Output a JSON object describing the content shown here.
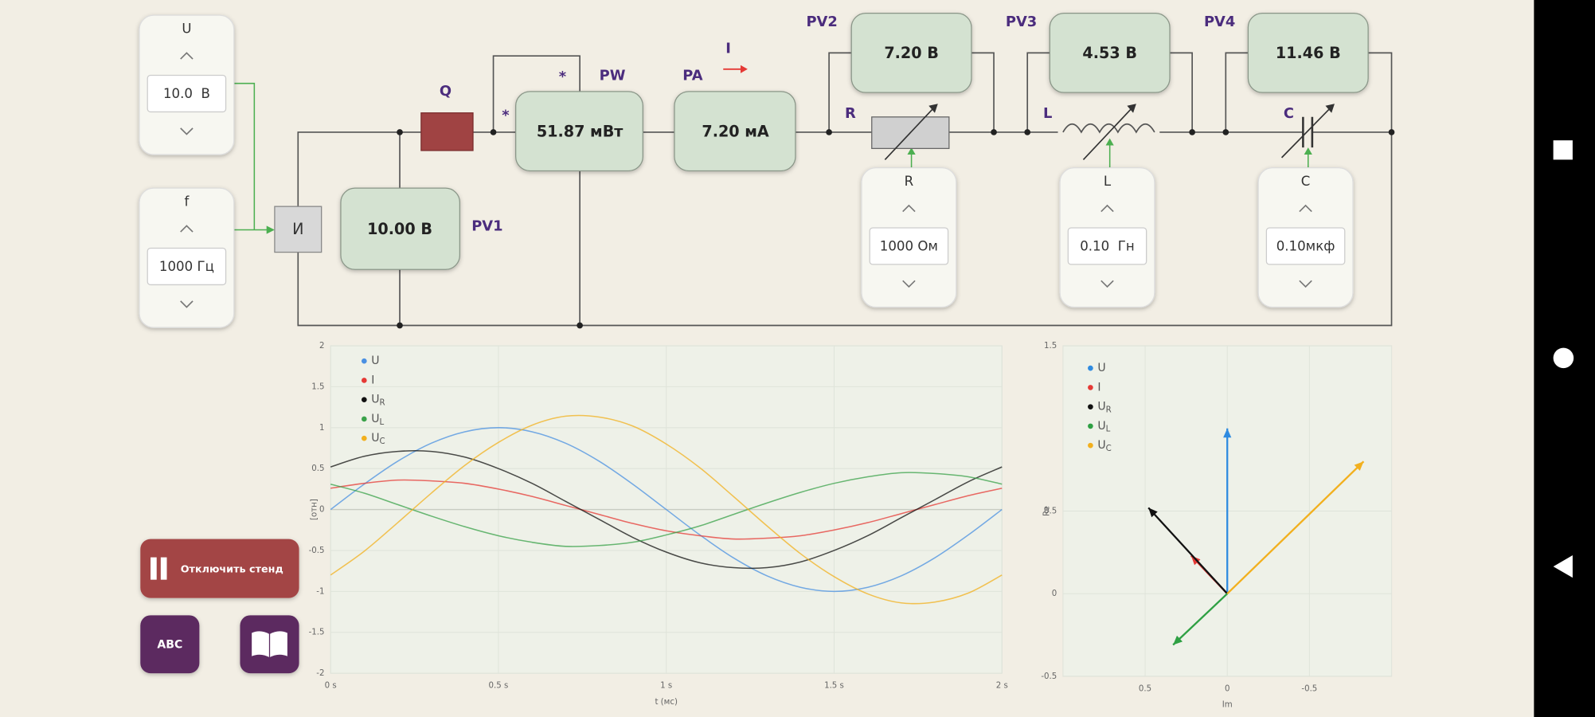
{
  "controls": {
    "U": {
      "label": "U",
      "value": "10.0  В"
    },
    "f": {
      "label": "f",
      "value": "1000 Гц"
    },
    "R": {
      "label": "R",
      "value": "1000 Ом"
    },
    "L": {
      "label": "L",
      "value": "0.10  Гн"
    },
    "C": {
      "label": "C",
      "value": "0.10мкф"
    }
  },
  "source": "И",
  "meters": {
    "PV1": {
      "label": "PV1",
      "reading": "10.00 В"
    },
    "PW": {
      "label": "PW",
      "reading": "51.87 мВт"
    },
    "PA": {
      "label": "PA",
      "reading": "7.20 мА"
    },
    "PV2": {
      "label": "PV2",
      "reading": "7.20 В"
    },
    "PV3": {
      "label": "PV3",
      "reading": "4.53 В"
    },
    "PV4": {
      "label": "PV4",
      "reading": "11.46 В"
    }
  },
  "circuit_labels": {
    "Q": "Q",
    "current": "I",
    "star": "*",
    "R": "R",
    "L": "L",
    "C": "C"
  },
  "buttons": {
    "stop": "Отключить стенд",
    "abc": "ABC"
  },
  "chart_data": [
    {
      "type": "line",
      "x_label": "t (мс)",
      "y_label": "[отн]",
      "x": [
        0,
        0.1,
        0.2,
        0.3,
        0.4,
        0.5,
        0.6,
        0.7,
        0.8,
        0.9,
        1,
        1.1,
        1.2,
        1.3,
        1.4,
        1.5,
        1.6,
        1.7,
        1.8,
        1.9,
        2
      ],
      "xlim": [
        0,
        2
      ],
      "xticks": [
        {
          "value": 0,
          "label": "0 s"
        },
        {
          "value": 0.5,
          "label": "0.5 s"
        },
        {
          "value": 1,
          "label": "1 s"
        },
        {
          "value": 1.5,
          "label": "1.5 s"
        },
        {
          "value": 2,
          "label": "2 s"
        }
      ],
      "ylim": [
        -2,
        2
      ],
      "yticks": [
        -2,
        -1.5,
        -1,
        -0.5,
        0,
        0.5,
        1,
        1.5,
        2
      ],
      "grid": true,
      "series": [
        {
          "name": "U",
          "color": "#4a90e2",
          "values": [
            0,
            0.31,
            0.59,
            0.81,
            0.95,
            1,
            0.95,
            0.81,
            0.59,
            0.31,
            0,
            -0.31,
            -0.59,
            -0.81,
            -0.95,
            -1,
            -0.95,
            -0.81,
            -0.59,
            -0.31,
            0
          ]
        },
        {
          "name": "I",
          "color": "#e53935",
          "values": [
            0.26,
            0.32,
            0.36,
            0.35,
            0.32,
            0.25,
            0.16,
            0.05,
            -0.06,
            -0.17,
            -0.26,
            -0.32,
            -0.36,
            -0.35,
            -0.32,
            -0.25,
            -0.16,
            -0.05,
            0.06,
            0.17,
            0.26
          ]
        },
        {
          "name": "UR",
          "color": "#111111",
          "values": [
            0.52,
            0.65,
            0.71,
            0.71,
            0.64,
            0.5,
            0.32,
            0.1,
            -0.12,
            -0.34,
            -0.52,
            -0.65,
            -0.71,
            -0.71,
            -0.64,
            -0.5,
            -0.32,
            -0.1,
            0.12,
            0.34,
            0.52
          ]
        },
        {
          "name": "UL",
          "color": "#3aa24a",
          "values": [
            0.31,
            0.2,
            0.06,
            -0.08,
            -0.21,
            -0.32,
            -0.4,
            -0.45,
            -0.44,
            -0.4,
            -0.31,
            -0.2,
            -0.06,
            0.08,
            0.21,
            0.32,
            0.4,
            0.45,
            0.44,
            0.4,
            0.31
          ]
        },
        {
          "name": "UC",
          "color": "#f2b01e",
          "values": [
            -0.8,
            -0.51,
            -0.16,
            0.2,
            0.54,
            0.82,
            1.03,
            1.14,
            1.13,
            1.02,
            0.8,
            0.51,
            0.16,
            -0.2,
            -0.54,
            -0.82,
            -1.03,
            -1.14,
            -1.13,
            -1.02,
            -0.8
          ]
        }
      ]
    },
    {
      "type": "vector",
      "x_label": "Im",
      "y_label": "Re",
      "xlim": [
        1,
        -1
      ],
      "xticks": [
        0.5,
        0,
        -0.5
      ],
      "ylim": [
        -0.5,
        1.5
      ],
      "yticks": [
        -0.5,
        0,
        0.5,
        1.5
      ],
      "grid": true,
      "series": [
        {
          "name": "U",
          "color": "#2f8be0",
          "x": 0,
          "y": 1.0
        },
        {
          "name": "I",
          "color": "#e53935",
          "x": 0.22,
          "y": 0.23
        },
        {
          "name": "UR",
          "color": "#111111",
          "x": 0.48,
          "y": 0.52
        },
        {
          "name": "UL",
          "color": "#2ea043",
          "x": 0.33,
          "y": -0.31
        },
        {
          "name": "UC",
          "color": "#f2b01e",
          "x": -0.83,
          "y": 0.8
        }
      ]
    }
  ]
}
